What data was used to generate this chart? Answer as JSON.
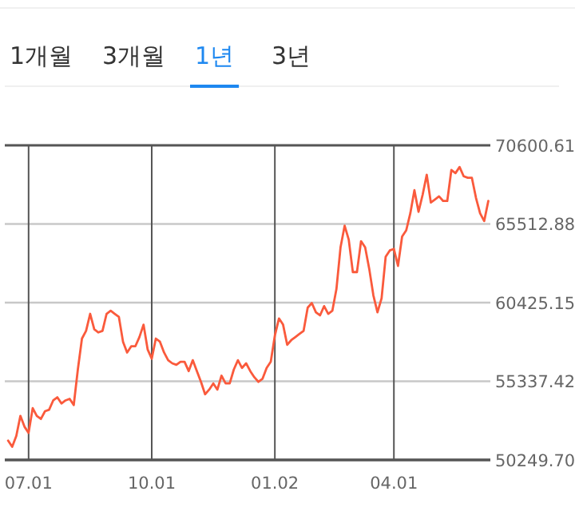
{
  "chart_data": {
    "type": "line",
    "annotations": [
      "1개월",
      "3개월",
      "1년",
      "3년"
    ],
    "categories": [
      null,
      null,
      null,
      null,
      null,
      "07.01",
      null,
      null,
      null,
      null,
      null,
      null,
      null,
      null,
      null,
      null,
      null,
      null,
      null,
      null,
      null,
      null,
      null,
      null,
      null,
      null,
      null,
      null,
      null,
      null,
      null,
      null,
      null,
      null,
      null,
      "10.01",
      null,
      null,
      null,
      null,
      null,
      null,
      null,
      null,
      null,
      null,
      null,
      null,
      null,
      null,
      null,
      null,
      null,
      null,
      null,
      null,
      null,
      null,
      null,
      null,
      null,
      null,
      null,
      null,
      null,
      "01.02",
      null,
      null,
      null,
      null,
      null,
      null,
      null,
      null,
      null,
      null,
      null,
      null,
      null,
      null,
      null,
      null,
      null,
      null,
      null,
      null,
      null,
      null,
      null,
      null,
      null,
      null,
      null,
      null,
      "04.01",
      null,
      null,
      null,
      null,
      null,
      null,
      null,
      null,
      null,
      null,
      null,
      null,
      null,
      null,
      null,
      null,
      null,
      null,
      null,
      null,
      null,
      null,
      null
    ],
    "series": [
      {
        "color": "#fa5a3c",
        "values": [
          51500,
          51100,
          51800,
          53100,
          52400,
          52000,
          53600,
          53100,
          52900,
          53400,
          53500,
          54100,
          54300,
          53900,
          54100,
          54200,
          53800,
          56100,
          58100,
          58600,
          59700,
          58700,
          58500,
          58600,
          59700,
          59900,
          59700,
          59500,
          57900,
          57200,
          57600,
          57600,
          58200,
          59000,
          57400,
          56800,
          58100,
          57900,
          57200,
          56700,
          56500,
          56400,
          56600,
          56600,
          56000,
          56700,
          56000,
          55300,
          54500,
          54800,
          55200,
          54800,
          55700,
          55200,
          55200,
          56100,
          56700,
          56200,
          56500,
          56000,
          55600,
          55300,
          55500,
          56200,
          56600,
          58300,
          59400,
          59000,
          57700,
          58000,
          58200,
          58400,
          58600,
          60100,
          60400,
          59800,
          59600,
          60200,
          59700,
          59900,
          61300,
          64000,
          65400,
          64500,
          62400,
          62400,
          64400,
          64000,
          62600,
          60900,
          59800,
          60700,
          63400,
          63800,
          63900,
          62800,
          64700,
          65100,
          66200,
          67700,
          66300,
          67400,
          68700,
          66900,
          67100,
          67300,
          67000,
          67000,
          69000,
          68800,
          69200,
          68600,
          68500,
          68500,
          67200,
          66200,
          65700,
          67000
        ]
      }
    ],
    "ylim": [
      50249.7,
      70600.61
    ],
    "yticks": [
      {
        "value": 50249.7,
        "label": "50249.70"
      },
      {
        "value": 55337.42,
        "label": "55337.42"
      },
      {
        "value": 60425.15,
        "label": "60425.15"
      },
      {
        "value": 65512.88,
        "label": "65512.88"
      },
      {
        "value": 70600.61,
        "label": "70600.61"
      }
    ],
    "grid": true,
    "line_style": "solid",
    "marker": "none"
  }
}
